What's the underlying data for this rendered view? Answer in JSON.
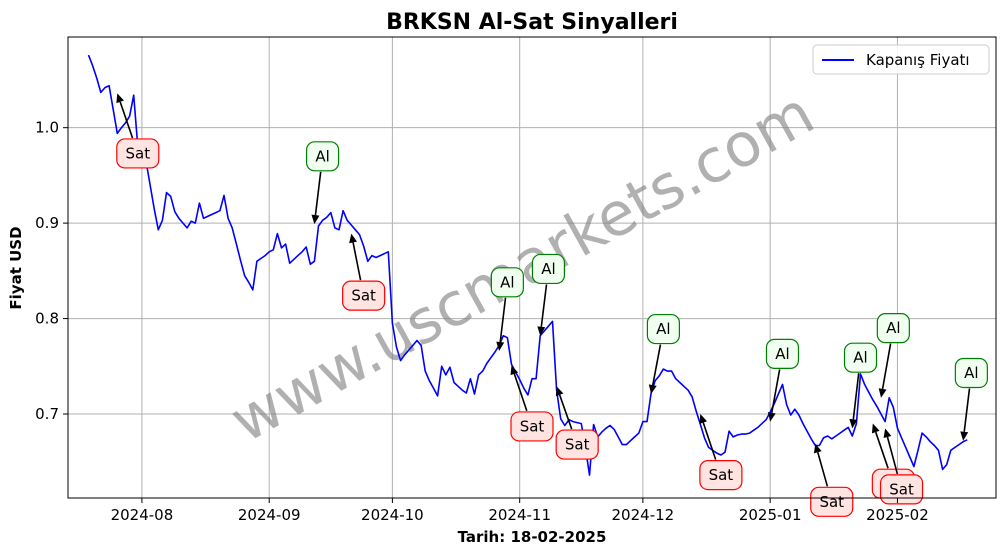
{
  "chart_data": {
    "type": "line",
    "title": "BRKSN Al-Sat Sinyalleri",
    "xlabel": "Tarih: 18-02-2025",
    "ylabel": "Fiyat USD",
    "xlim": [
      "2024-07-14",
      "2025-02-25"
    ],
    "ylim": [
      0.612,
      1.095
    ],
    "x_ticks": [
      {
        "date": "2024-08-01",
        "label": "2024-08"
      },
      {
        "date": "2024-09-01",
        "label": "2024-09"
      },
      {
        "date": "2024-10-01",
        "label": "2024-10"
      },
      {
        "date": "2024-11-01",
        "label": "2024-11"
      },
      {
        "date": "2024-12-01",
        "label": "2024-12"
      },
      {
        "date": "2025-01-01",
        "label": "2025-01"
      },
      {
        "date": "2025-02-01",
        "label": "2025-02"
      }
    ],
    "y_ticks": [
      {
        "value": 0.7,
        "label": "0.7"
      },
      {
        "value": 0.8,
        "label": "0.8"
      },
      {
        "value": 0.9,
        "label": "0.9"
      },
      {
        "value": 1.0,
        "label": "1.0"
      }
    ],
    "grid": true,
    "legend": {
      "position": "top-right",
      "entries": [
        {
          "label": "Kapanış Fiyatı",
          "color": "#0000ff"
        }
      ]
    },
    "watermark": "www.uscmarkets.com",
    "series": [
      {
        "name": "Kapanış Fiyatı",
        "color": "#0000ff",
        "points": [
          [
            "2024-07-19",
            1.076
          ],
          [
            "2024-07-20",
            1.065
          ],
          [
            "2024-07-21",
            1.052
          ],
          [
            "2024-07-22",
            1.037
          ],
          [
            "2024-07-23",
            1.042
          ],
          [
            "2024-07-24",
            1.044
          ],
          [
            "2024-07-25",
            1.019
          ],
          [
            "2024-07-26",
            0.994
          ],
          [
            "2024-07-27",
            1.0
          ],
          [
            "2024-07-28",
            1.005
          ],
          [
            "2024-07-29",
            1.012
          ],
          [
            "2024-07-30",
            1.034
          ],
          [
            "2024-07-31",
            0.98
          ],
          [
            "2024-08-01",
            0.985
          ],
          [
            "2024-08-02",
            0.965
          ],
          [
            "2024-08-03",
            0.94
          ],
          [
            "2024-08-04",
            0.915
          ],
          [
            "2024-08-05",
            0.893
          ],
          [
            "2024-08-06",
            0.903
          ],
          [
            "2024-08-07",
            0.932
          ],
          [
            "2024-08-08",
            0.928
          ],
          [
            "2024-08-09",
            0.912
          ],
          [
            "2024-08-10",
            0.905
          ],
          [
            "2024-08-11",
            0.9
          ],
          [
            "2024-08-12",
            0.895
          ],
          [
            "2024-08-13",
            0.902
          ],
          [
            "2024-08-14",
            0.9
          ],
          [
            "2024-08-15",
            0.921
          ],
          [
            "2024-08-16",
            0.905
          ],
          [
            "2024-08-17",
            0.907
          ],
          [
            "2024-08-18",
            0.909
          ],
          [
            "2024-08-19",
            0.911
          ],
          [
            "2024-08-20",
            0.913
          ],
          [
            "2024-08-21",
            0.929
          ],
          [
            "2024-08-22",
            0.905
          ],
          [
            "2024-08-23",
            0.895
          ],
          [
            "2024-08-24",
            0.878
          ],
          [
            "2024-08-25",
            0.861
          ],
          [
            "2024-08-26",
            0.845
          ],
          [
            "2024-08-27",
            0.838
          ],
          [
            "2024-08-28",
            0.83
          ],
          [
            "2024-08-29",
            0.86
          ],
          [
            "2024-08-30",
            0.863
          ],
          [
            "2024-08-31",
            0.866
          ],
          [
            "2024-09-01",
            0.87
          ],
          [
            "2024-09-02",
            0.872
          ],
          [
            "2024-09-03",
            0.889
          ],
          [
            "2024-09-04",
            0.874
          ],
          [
            "2024-09-05",
            0.878
          ],
          [
            "2024-09-06",
            0.858
          ],
          [
            "2024-09-07",
            0.862
          ],
          [
            "2024-09-08",
            0.866
          ],
          [
            "2024-09-09",
            0.87
          ],
          [
            "2024-09-10",
            0.875
          ],
          [
            "2024-09-11",
            0.857
          ],
          [
            "2024-09-12",
            0.86
          ],
          [
            "2024-09-13",
            0.897
          ],
          [
            "2024-09-14",
            0.903
          ],
          [
            "2024-09-15",
            0.906
          ],
          [
            "2024-09-16",
            0.911
          ],
          [
            "2024-09-17",
            0.895
          ],
          [
            "2024-09-18",
            0.893
          ],
          [
            "2024-09-19",
            0.913
          ],
          [
            "2024-09-20",
            0.903
          ],
          [
            "2024-09-21",
            0.898
          ],
          [
            "2024-09-22",
            0.893
          ],
          [
            "2024-09-23",
            0.888
          ],
          [
            "2024-09-24",
            0.876
          ],
          [
            "2024-09-25",
            0.86
          ],
          [
            "2024-09-26",
            0.866
          ],
          [
            "2024-09-27",
            0.864
          ],
          [
            "2024-09-28",
            0.866
          ],
          [
            "2024-09-29",
            0.868
          ],
          [
            "2024-09-30",
            0.87
          ],
          [
            "2024-10-01",
            0.795
          ],
          [
            "2024-10-02",
            0.77
          ],
          [
            "2024-10-03",
            0.756
          ],
          [
            "2024-10-04",
            0.762
          ],
          [
            "2024-10-05",
            0.767
          ],
          [
            "2024-10-06",
            0.772
          ],
          [
            "2024-10-07",
            0.777
          ],
          [
            "2024-10-08",
            0.772
          ],
          [
            "2024-10-09",
            0.745
          ],
          [
            "2024-10-10",
            0.735
          ],
          [
            "2024-10-11",
            0.727
          ],
          [
            "2024-10-12",
            0.719
          ],
          [
            "2024-10-13",
            0.75
          ],
          [
            "2024-10-14",
            0.741
          ],
          [
            "2024-10-15",
            0.749
          ],
          [
            "2024-10-16",
            0.733
          ],
          [
            "2024-10-17",
            0.729
          ],
          [
            "2024-10-18",
            0.725
          ],
          [
            "2024-10-19",
            0.722
          ],
          [
            "2024-10-20",
            0.737
          ],
          [
            "2024-10-21",
            0.721
          ],
          [
            "2024-10-22",
            0.741
          ],
          [
            "2024-10-23",
            0.745
          ],
          [
            "2024-10-24",
            0.753
          ],
          [
            "2024-10-25",
            0.759
          ],
          [
            "2024-10-26",
            0.765
          ],
          [
            "2024-10-27",
            0.772
          ],
          [
            "2024-10-28",
            0.782
          ],
          [
            "2024-10-29",
            0.78
          ],
          [
            "2024-10-30",
            0.752
          ],
          [
            "2024-10-31",
            0.744
          ],
          [
            "2024-11-01",
            0.736
          ],
          [
            "2024-11-02",
            0.727
          ],
          [
            "2024-11-03",
            0.72
          ],
          [
            "2024-11-04",
            0.737
          ],
          [
            "2024-11-05",
            0.737
          ],
          [
            "2024-11-06",
            0.782
          ],
          [
            "2024-11-07",
            0.787
          ],
          [
            "2024-11-08",
            0.792
          ],
          [
            "2024-11-09",
            0.797
          ],
          [
            "2024-11-10",
            0.725
          ],
          [
            "2024-11-11",
            0.695
          ],
          [
            "2024-11-12",
            0.688
          ],
          [
            "2024-11-13",
            0.694
          ],
          [
            "2024-11-14",
            0.692
          ],
          [
            "2024-11-15",
            0.691
          ],
          [
            "2024-11-16",
            0.69
          ],
          [
            "2024-11-17",
            0.665
          ],
          [
            "2024-11-18",
            0.636
          ],
          [
            "2024-11-19",
            0.689
          ],
          [
            "2024-11-20",
            0.676
          ],
          [
            "2024-11-21",
            0.681
          ],
          [
            "2024-11-22",
            0.685
          ],
          [
            "2024-11-23",
            0.688
          ],
          [
            "2024-11-24",
            0.684
          ],
          [
            "2024-11-25",
            0.676
          ],
          [
            "2024-11-26",
            0.668
          ],
          [
            "2024-11-27",
            0.668
          ],
          [
            "2024-11-28",
            0.672
          ],
          [
            "2024-11-29",
            0.676
          ],
          [
            "2024-11-30",
            0.68
          ],
          [
            "2024-12-01",
            0.692
          ],
          [
            "2024-12-02",
            0.692
          ],
          [
            "2024-12-03",
            0.722
          ],
          [
            "2024-12-04",
            0.735
          ],
          [
            "2024-12-05",
            0.74
          ],
          [
            "2024-12-06",
            0.747
          ],
          [
            "2024-12-07",
            0.745
          ],
          [
            "2024-12-08",
            0.745
          ],
          [
            "2024-12-09",
            0.737
          ],
          [
            "2024-12-10",
            0.733
          ],
          [
            "2024-12-11",
            0.729
          ],
          [
            "2024-12-12",
            0.725
          ],
          [
            "2024-12-13",
            0.718
          ],
          [
            "2024-12-14",
            0.703
          ],
          [
            "2024-12-15",
            0.689
          ],
          [
            "2024-12-16",
            0.675
          ],
          [
            "2024-12-17",
            0.665
          ],
          [
            "2024-12-18",
            0.662
          ],
          [
            "2024-12-19",
            0.659
          ],
          [
            "2024-12-20",
            0.657
          ],
          [
            "2024-12-21",
            0.66
          ],
          [
            "2024-12-22",
            0.682
          ],
          [
            "2024-12-23",
            0.676
          ],
          [
            "2024-12-24",
            0.678
          ],
          [
            "2024-12-25",
            0.679
          ],
          [
            "2024-12-26",
            0.679
          ],
          [
            "2024-12-27",
            0.68
          ],
          [
            "2024-12-28",
            0.683
          ],
          [
            "2024-12-29",
            0.686
          ],
          [
            "2024-12-30",
            0.69
          ],
          [
            "2024-12-31",
            0.694
          ],
          [
            "2025-01-01",
            0.702
          ],
          [
            "2025-01-02",
            0.711
          ],
          [
            "2025-01-03",
            0.721
          ],
          [
            "2025-01-04",
            0.731
          ],
          [
            "2025-01-05",
            0.71
          ],
          [
            "2025-01-06",
            0.699
          ],
          [
            "2025-01-07",
            0.705
          ],
          [
            "2025-01-08",
            0.699
          ],
          [
            "2025-01-09",
            0.69
          ],
          [
            "2025-01-10",
            0.682
          ],
          [
            "2025-01-11",
            0.674
          ],
          [
            "2025-01-12",
            0.667
          ],
          [
            "2025-01-13",
            0.667
          ],
          [
            "2025-01-14",
            0.675
          ],
          [
            "2025-01-15",
            0.677
          ],
          [
            "2025-01-16",
            0.674
          ],
          [
            "2025-01-17",
            0.677
          ],
          [
            "2025-01-18",
            0.68
          ],
          [
            "2025-01-19",
            0.683
          ],
          [
            "2025-01-20",
            0.686
          ],
          [
            "2025-01-21",
            0.677
          ],
          [
            "2025-01-22",
            0.69
          ],
          [
            "2025-01-23",
            0.742
          ],
          [
            "2025-01-24",
            0.731
          ],
          [
            "2025-01-25",
            0.723
          ],
          [
            "2025-01-26",
            0.715
          ],
          [
            "2025-01-27",
            0.708
          ],
          [
            "2025-01-28",
            0.7
          ],
          [
            "2025-01-29",
            0.692
          ],
          [
            "2025-01-30",
            0.717
          ],
          [
            "2025-01-31",
            0.707
          ],
          [
            "2025-02-01",
            0.685
          ],
          [
            "2025-02-02",
            0.675
          ],
          [
            "2025-02-03",
            0.665
          ],
          [
            "2025-02-04",
            0.655
          ],
          [
            "2025-02-05",
            0.645
          ],
          [
            "2025-02-06",
            0.662
          ],
          [
            "2025-02-07",
            0.68
          ],
          [
            "2025-02-08",
            0.676
          ],
          [
            "2025-02-09",
            0.671
          ],
          [
            "2025-02-10",
            0.667
          ],
          [
            "2025-02-11",
            0.662
          ],
          [
            "2025-02-12",
            0.642
          ],
          [
            "2025-02-13",
            0.647
          ],
          [
            "2025-02-14",
            0.662
          ],
          [
            "2025-02-15",
            0.665
          ],
          [
            "2025-02-16",
            0.668
          ],
          [
            "2025-02-17",
            0.671
          ],
          [
            "2025-02-18",
            0.673
          ]
        ]
      }
    ],
    "annotations": [
      {
        "label": "Sat",
        "kind": "sell",
        "target": [
          "2024-07-26",
          1.036
        ],
        "text_at": [
          "2024-07-31",
          0.973
        ]
      },
      {
        "label": "Al",
        "kind": "buy",
        "target": [
          "2024-09-12",
          0.899
        ],
        "text_at": [
          "2024-09-14",
          0.97
        ]
      },
      {
        "label": "Sat",
        "kind": "sell",
        "target": [
          "2024-09-21",
          0.889
        ],
        "text_at": [
          "2024-09-24",
          0.824
        ]
      },
      {
        "label": "Al",
        "kind": "buy",
        "target": [
          "2024-10-27",
          0.766
        ],
        "text_at": [
          "2024-10-29",
          0.838
        ]
      },
      {
        "label": "Sat",
        "kind": "sell",
        "target": [
          "2024-10-30",
          0.751
        ],
        "text_at": [
          "2024-11-04",
          0.687
        ]
      },
      {
        "label": "Al",
        "kind": "buy",
        "target": [
          "2024-11-06",
          0.782
        ],
        "text_at": [
          "2024-11-08",
          0.852
        ]
      },
      {
        "label": "Sat",
        "kind": "sell",
        "target": [
          "2024-11-10",
          0.729
        ],
        "text_at": [
          "2024-11-15",
          0.668
        ]
      },
      {
        "label": "Al",
        "kind": "buy",
        "target": [
          "2024-12-03",
          0.721
        ],
        "text_at": [
          "2024-12-06",
          0.789
        ]
      },
      {
        "label": "Sat",
        "kind": "sell",
        "target": [
          "2024-12-15",
          0.7
        ],
        "text_at": [
          "2024-12-20",
          0.636
        ]
      },
      {
        "label": "Al",
        "kind": "buy",
        "target": [
          "2025-01-01",
          0.692
        ],
        "text_at": [
          "2025-01-04",
          0.763
        ]
      },
      {
        "label": "Sat",
        "kind": "sell",
        "target": [
          "2025-01-12",
          0.669
        ],
        "text_at": [
          "2025-01-16",
          0.608
        ]
      },
      {
        "label": "Al",
        "kind": "buy",
        "target": [
          "2025-01-21",
          0.685
        ],
        "text_at": [
          "2025-01-23",
          0.759
        ]
      },
      {
        "label": "Sat",
        "kind": "sell",
        "target": [
          "2025-01-26",
          0.69
        ],
        "text_at": [
          "2025-01-31",
          0.627
        ]
      },
      {
        "label": "Al",
        "kind": "buy",
        "target": [
          "2025-01-28",
          0.717
        ],
        "text_at": [
          "2025-01-31",
          0.79
        ]
      },
      {
        "label": "Sat",
        "kind": "sell",
        "target": [
          "2025-01-29",
          0.685
        ],
        "text_at": [
          "2025-02-02",
          0.621
        ]
      },
      {
        "label": "Al",
        "kind": "buy",
        "target": [
          "2025-02-17",
          0.672
        ],
        "text_at": [
          "2025-02-19",
          0.743
        ]
      }
    ]
  }
}
